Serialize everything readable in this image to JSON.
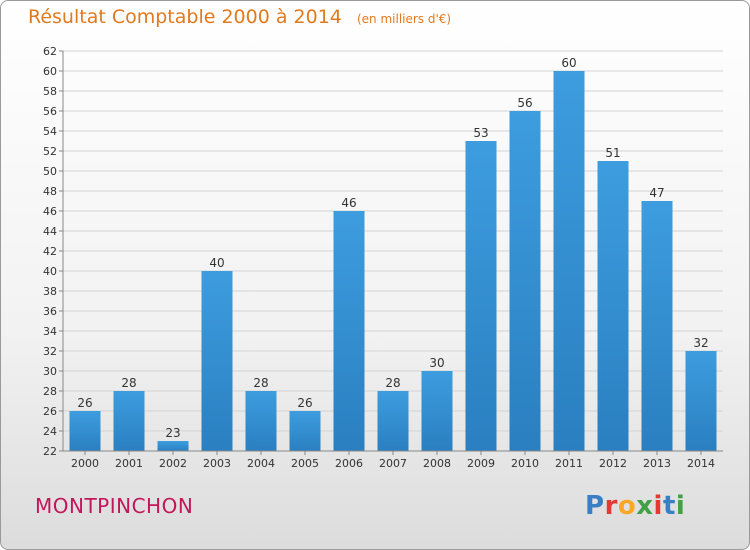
{
  "title": "Résultat Comptable 2000 à 2014",
  "subtitle": "(en milliers d'€)",
  "commune": "MONTPINCHON",
  "logo": {
    "letters": [
      "P",
      "r",
      "o",
      "x",
      "i",
      "t",
      "i"
    ],
    "colors": [
      "#3a7fc4",
      "#e53935",
      "#f9a825",
      "#43a047",
      "#e53935",
      "#3a7fc4",
      "#43a047"
    ]
  },
  "colors": {
    "bar": "#3d9ddf",
    "bar_dark": "#2a7fc0",
    "title": "#e07a1e",
    "commune": "#c2185b"
  },
  "chart_data": {
    "type": "bar",
    "title": "Résultat Comptable 2000 à 2014",
    "subtitle": "(en milliers d'€)",
    "categories": [
      "2000",
      "2001",
      "2002",
      "2003",
      "2004",
      "2005",
      "2006",
      "2007",
      "2008",
      "2009",
      "2010",
      "2011",
      "2012",
      "2013",
      "2014"
    ],
    "values": [
      26,
      28,
      23,
      40,
      28,
      26,
      46,
      28,
      30,
      53,
      56,
      60,
      51,
      47,
      32
    ],
    "ylim": [
      22,
      62
    ],
    "yticks": [
      22,
      24,
      26,
      28,
      30,
      32,
      34,
      36,
      38,
      40,
      42,
      44,
      46,
      48,
      50,
      52,
      54,
      56,
      58,
      60,
      62
    ],
    "grid": true,
    "legend": "none"
  }
}
